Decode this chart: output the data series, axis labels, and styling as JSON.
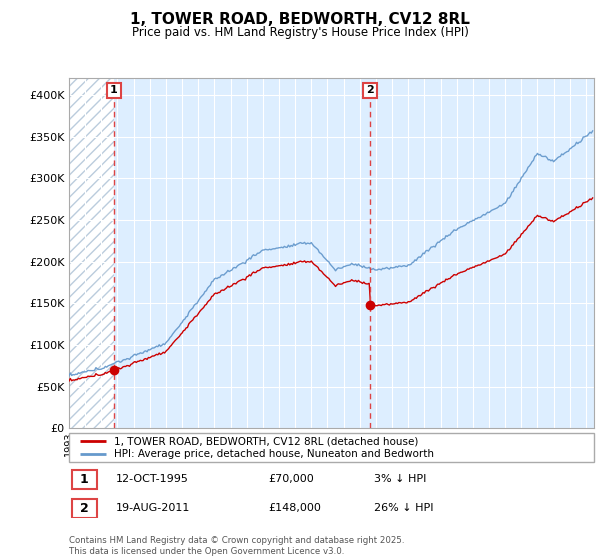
{
  "title": "1, TOWER ROAD, BEDWORTH, CV12 8RL",
  "subtitle": "Price paid vs. HM Land Registry's House Price Index (HPI)",
  "legend_line1": "1, TOWER ROAD, BEDWORTH, CV12 8RL (detached house)",
  "legend_line2": "HPI: Average price, detached house, Nuneaton and Bedworth",
  "sale1_label": "1",
  "sale1_date": "12-OCT-1995",
  "sale1_price": "£70,000",
  "sale1_hpi": "3% ↓ HPI",
  "sale2_label": "2",
  "sale2_date": "19-AUG-2011",
  "sale2_price": "£148,000",
  "sale2_hpi": "26% ↓ HPI",
  "footer": "Contains HM Land Registry data © Crown copyright and database right 2025.\nThis data is licensed under the Open Government Licence v3.0.",
  "red_line_color": "#cc0000",
  "blue_line_color": "#6699cc",
  "bg_fill_color": "#ddeeff",
  "dashed_line_color": "#dd4444",
  "hatch_color": "#bbccdd",
  "background_color": "#ffffff",
  "sale1_x": 1995.78,
  "sale1_y": 70000,
  "sale2_x": 2011.63,
  "sale2_y": 148000,
  "ylim": [
    0,
    420000
  ],
  "xlim": [
    1993.0,
    2025.5
  ]
}
